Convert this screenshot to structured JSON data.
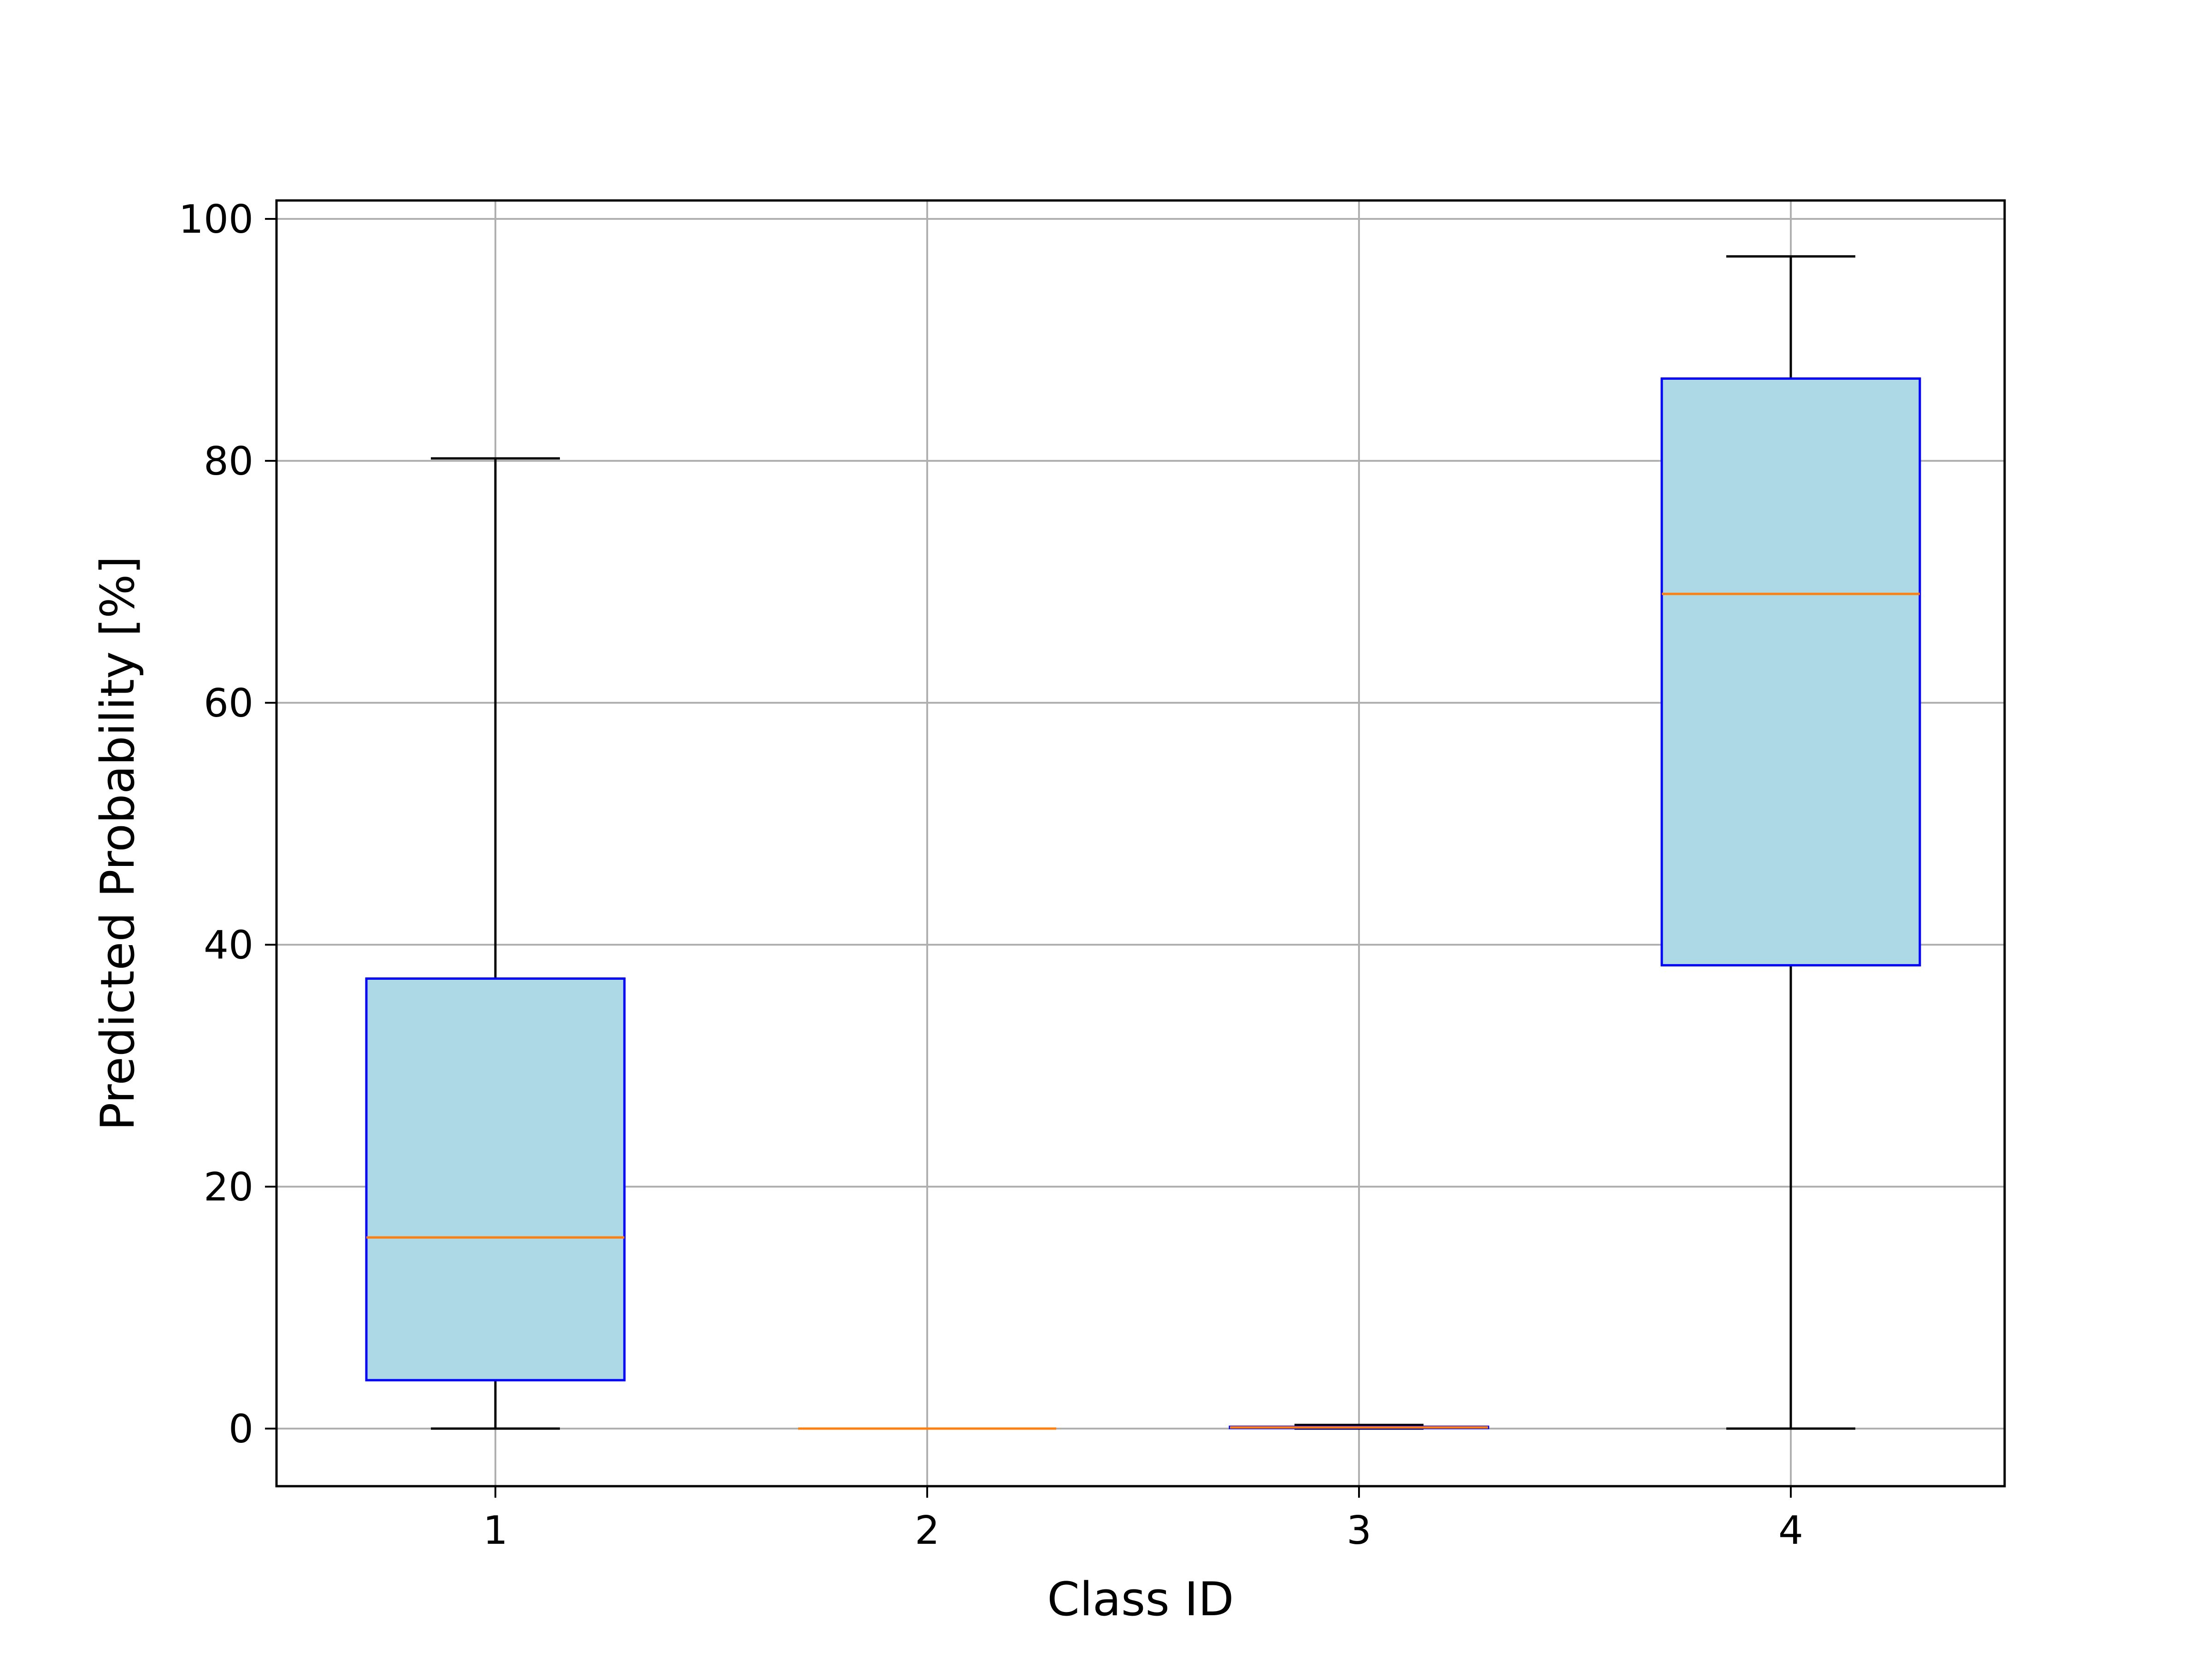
{
  "chart_data": {
    "type": "box",
    "title": "",
    "xlabel": "Class ID",
    "ylabel": "Predicted Probability [%]",
    "categories": [
      "1",
      "2",
      "3",
      "4"
    ],
    "yticks": [
      "0",
      "20",
      "40",
      "60",
      "80",
      "100"
    ],
    "ylim": [
      -5,
      101.5
    ],
    "grid": true,
    "boxes": [
      {
        "category": "1",
        "whisker_low": 0,
        "q1": 4,
        "median": 15.8,
        "q3": 37.2,
        "whisker_high": 80.2
      },
      {
        "category": "2",
        "whisker_low": 0,
        "q1": 0,
        "median": 0,
        "q3": 0,
        "whisker_high": 0
      },
      {
        "category": "3",
        "whisker_low": 0,
        "q1": 0.05,
        "median": 0.1,
        "q3": 0.15,
        "whisker_high": 0.3
      },
      {
        "category": "4",
        "whisker_low": 0,
        "q1": 38.3,
        "median": 69,
        "q3": 86.8,
        "whisker_high": 96.9
      }
    ],
    "colors": {
      "box_fill": "#add8e6",
      "box_edge": "#0000ff",
      "median": "#ff7f0e",
      "whisker": "#000000",
      "grid": "#b0b0b0",
      "axes": "#000000"
    }
  }
}
